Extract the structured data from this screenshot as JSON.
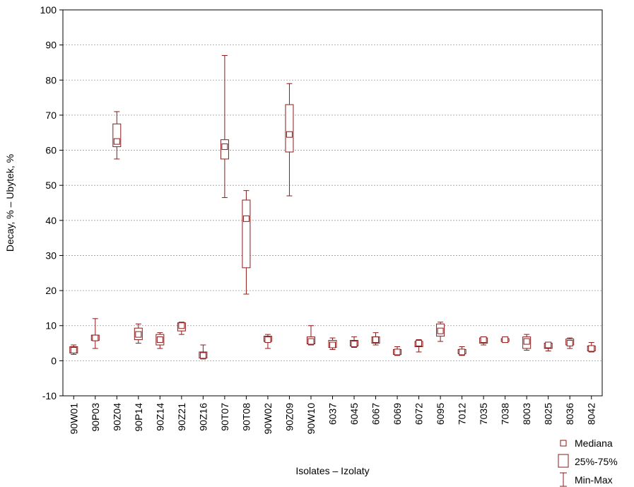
{
  "chart_data": {
    "type": "box",
    "xlabel": "Isolates – Izolaty",
    "ylabel": "Decay, % – Ubytek, %",
    "ylim": [
      -10,
      100
    ],
    "yticks": [
      -10,
      0,
      10,
      20,
      30,
      40,
      50,
      60,
      70,
      80,
      90,
      100
    ],
    "grid": "horizontal dashed",
    "legend_position": "bottom-right",
    "legend": [
      "Mediana",
      "25%-75%",
      "Min-Max"
    ],
    "color": "#8b1a1a",
    "categories": [
      "90W01",
      "90P03",
      "90Z04",
      "90P14",
      "90Z14",
      "90Z21",
      "90Z16",
      "90T07",
      "90T08",
      "90W02",
      "90Z09",
      "90W10",
      "6037",
      "6045",
      "6067",
      "6069",
      "6072",
      "6095",
      "7012",
      "7035",
      "7038",
      "8003",
      "8025",
      "8036",
      "8042"
    ],
    "boxes": [
      {
        "min": 1.8,
        "q1": 2.2,
        "median": 3.0,
        "q3": 4.0,
        "max": 4.5
      },
      {
        "min": 3.5,
        "q1": 5.8,
        "median": 6.5,
        "q3": 7.3,
        "max": 12.0
      },
      {
        "min": 57.5,
        "q1": 61.0,
        "median": 62.5,
        "q3": 67.5,
        "max": 71.0
      },
      {
        "min": 5.0,
        "q1": 6.0,
        "median": 7.5,
        "q3": 9.3,
        "max": 10.5
      },
      {
        "min": 3.5,
        "q1": 4.5,
        "median": 6.0,
        "q3": 7.5,
        "max": 8.0
      },
      {
        "min": 7.5,
        "q1": 8.5,
        "median": 10.0,
        "q3": 10.8,
        "max": 11.0
      },
      {
        "min": 0.5,
        "q1": 0.8,
        "median": 1.5,
        "q3": 2.5,
        "max": 4.5
      },
      {
        "min": 46.5,
        "q1": 57.5,
        "median": 61.0,
        "q3": 63.0,
        "max": 87.0
      },
      {
        "min": 19.0,
        "q1": 26.5,
        "median": 40.5,
        "q3": 45.8,
        "max": 48.5
      },
      {
        "min": 3.5,
        "q1": 5.5,
        "median": 6.0,
        "q3": 7.0,
        "max": 7.5
      },
      {
        "min": 47.0,
        "q1": 59.5,
        "median": 64.5,
        "q3": 73.0,
        "max": 79.0
      },
      {
        "min": 4.5,
        "q1": 4.8,
        "median": 5.5,
        "q3": 6.8,
        "max": 10.0
      },
      {
        "min": 3.2,
        "q1": 3.8,
        "median": 4.5,
        "q3": 5.8,
        "max": 6.5
      },
      {
        "min": 3.8,
        "q1": 4.2,
        "median": 4.8,
        "q3": 5.8,
        "max": 6.8
      },
      {
        "min": 4.5,
        "q1": 5.0,
        "median": 6.0,
        "q3": 6.8,
        "max": 8.0
      },
      {
        "min": 1.5,
        "q1": 1.8,
        "median": 2.5,
        "q3": 3.2,
        "max": 4.0
      },
      {
        "min": 2.5,
        "q1": 4.0,
        "median": 5.0,
        "q3": 5.5,
        "max": 6.0
      },
      {
        "min": 5.5,
        "q1": 7.0,
        "median": 8.5,
        "q3": 10.5,
        "max": 11.0
      },
      {
        "min": 1.5,
        "q1": 2.0,
        "median": 2.5,
        "q3": 3.2,
        "max": 4.0
      },
      {
        "min": 4.5,
        "q1": 5.0,
        "median": 6.0,
        "q3": 6.5,
        "max": 6.8
      },
      {
        "min": 5.2,
        "q1": 5.5,
        "median": 6.0,
        "q3": 6.3,
        "max": 6.5
      },
      {
        "min": 3.0,
        "q1": 3.5,
        "median": 5.5,
        "q3": 6.8,
        "max": 7.5
      },
      {
        "min": 2.8,
        "q1": 3.5,
        "median": 4.5,
        "q3": 5.0,
        "max": 5.2
      },
      {
        "min": 3.5,
        "q1": 4.5,
        "median": 5.0,
        "q3": 6.2,
        "max": 6.5
      },
      {
        "min": 2.5,
        "q1": 2.8,
        "median": 3.5,
        "q3": 4.2,
        "max": 5.2
      }
    ]
  }
}
